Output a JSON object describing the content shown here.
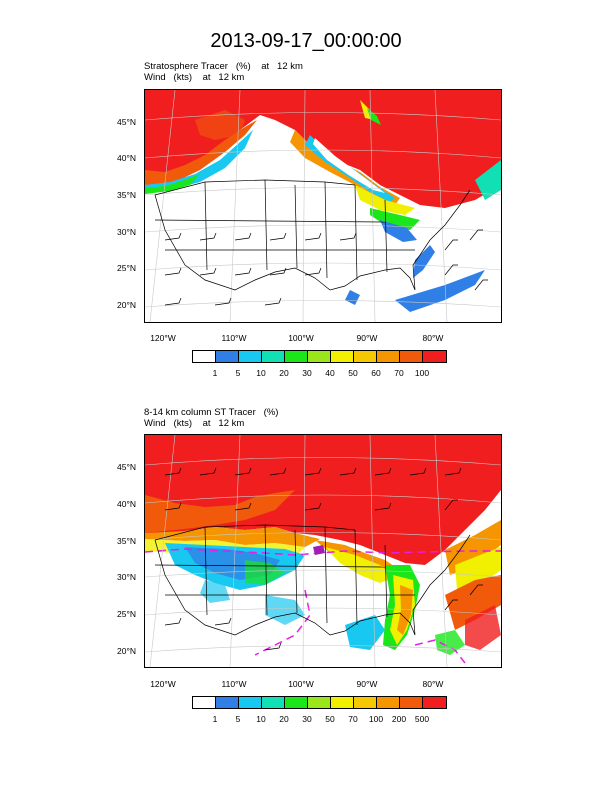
{
  "title": "2013-09-17_00:00:00",
  "panel1": {
    "line1": "Stratosphere Tracer   (%)    at   12 km",
    "line2": "Wind   (kts)    at   12 km",
    "colorbar_labels": [
      "1",
      "5",
      "10",
      "20",
      "30",
      "40",
      "50",
      "60",
      "70",
      "100"
    ]
  },
  "panel2": {
    "line1": "8-14 km column ST Tracer   (%)",
    "line2": "Wind   (kts)    at   12 km",
    "colorbar_labels": [
      "1",
      "5",
      "10",
      "20",
      "30",
      "50",
      "70",
      "100",
      "200",
      "500"
    ]
  },
  "lat_labels": [
    "45°N",
    "40°N",
    "35°N",
    "30°N",
    "25°N",
    "20°N"
  ],
  "lon_labels": [
    "120°W",
    "110°W",
    "100°W",
    "90°W",
    "80°W"
  ],
  "colorbar_colors": [
    "#ffffff",
    "#2f7fe6",
    "#19c8f0",
    "#10e0b4",
    "#1ae61a",
    "#9be61a",
    "#f0f000",
    "#f5c800",
    "#f59600",
    "#f05a0a",
    "#f01e1e"
  ]
}
